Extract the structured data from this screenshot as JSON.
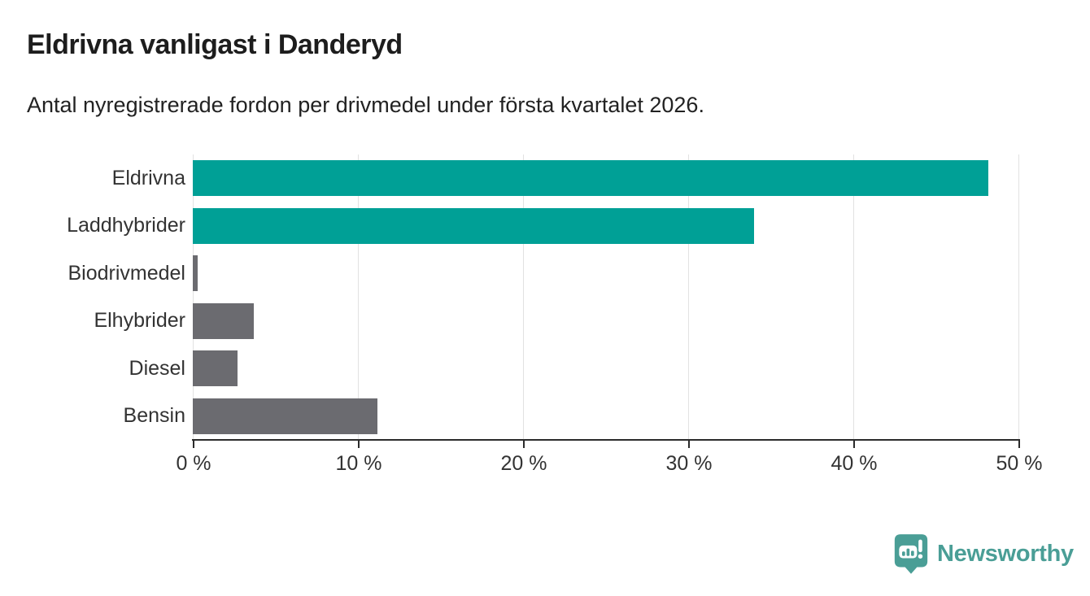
{
  "header": {
    "title": "Eldrivna vanligast i Danderyd",
    "subtitle": "Antal nyregistrerade fordon per drivmedel under första kvartalet 2026."
  },
  "chart_data": {
    "type": "bar",
    "orientation": "horizontal",
    "title": "Eldrivna vanligast i Danderyd",
    "subtitle": "Antal nyregistrerade fordon per drivmedel under första kvartalet 2026.",
    "categories": [
      "Eldrivna",
      "Laddhybrider",
      "Biodrivmedel",
      "Elhybrider",
      "Diesel",
      "Bensin"
    ],
    "values": [
      48.2,
      34.0,
      0.3,
      3.7,
      2.7,
      11.2
    ],
    "unit": "%",
    "bar_colors": [
      "#00a096",
      "#00a096",
      "#6b6b70",
      "#6b6b70",
      "#6b6b70",
      "#6b6b70"
    ],
    "xlim": [
      0,
      50
    ],
    "x_ticks": [
      {
        "value": 0,
        "label": "0 %"
      },
      {
        "value": 10,
        "label": "10 %"
      },
      {
        "value": 20,
        "label": "20 %"
      },
      {
        "value": 30,
        "label": "30 %"
      },
      {
        "value": 40,
        "label": "40 %"
      },
      {
        "value": 50,
        "label": "50 %"
      }
    ],
    "xlabel": "",
    "ylabel": "",
    "grid": "vertical gridlines on",
    "legend": "none"
  },
  "colors": {
    "accent_teal": "#00a096",
    "neutral_gray": "#6b6b70",
    "axis": "#2b2b2b",
    "gridline": "#e2e2e2",
    "text": "#333333",
    "title_text": "#1d1d1d",
    "brand_teal": "#4a9e96"
  },
  "branding": {
    "logo_text": "Newsworthy",
    "logo_icon": "newsworthy-pin-icon"
  }
}
